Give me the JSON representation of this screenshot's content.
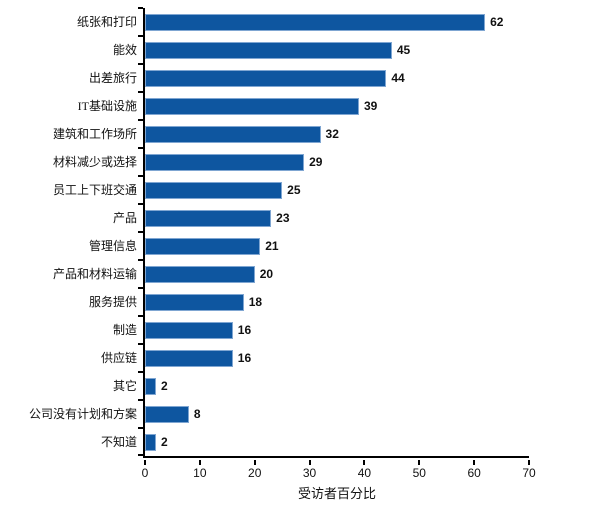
{
  "chart_data": {
    "type": "bar",
    "orientation": "horizontal",
    "title": "",
    "categories": [
      "纸张和打印",
      "能效",
      "出差旅行",
      "IT基础设施",
      "建筑和工作场所",
      "材料减少或选择",
      "员工上下班交通",
      "产品",
      "管理信息",
      "产品和材料运输",
      "服务提供",
      "制造",
      "供应链",
      "其它",
      "公司没有计划和方案",
      "不知道"
    ],
    "values": [
      62,
      45,
      44,
      39,
      32,
      29,
      25,
      23,
      21,
      20,
      18,
      16,
      16,
      2,
      8,
      2
    ],
    "xlabel": "受访者百分比",
    "xticks": [
      0,
      10,
      20,
      30,
      40,
      50,
      60,
      70
    ],
    "xlim": [
      0,
      70
    ],
    "bar_color": "#0e56a0",
    "bar_border_color": "#7fa6d2",
    "axis_color": "#000000",
    "grid": false,
    "legend": null
  }
}
